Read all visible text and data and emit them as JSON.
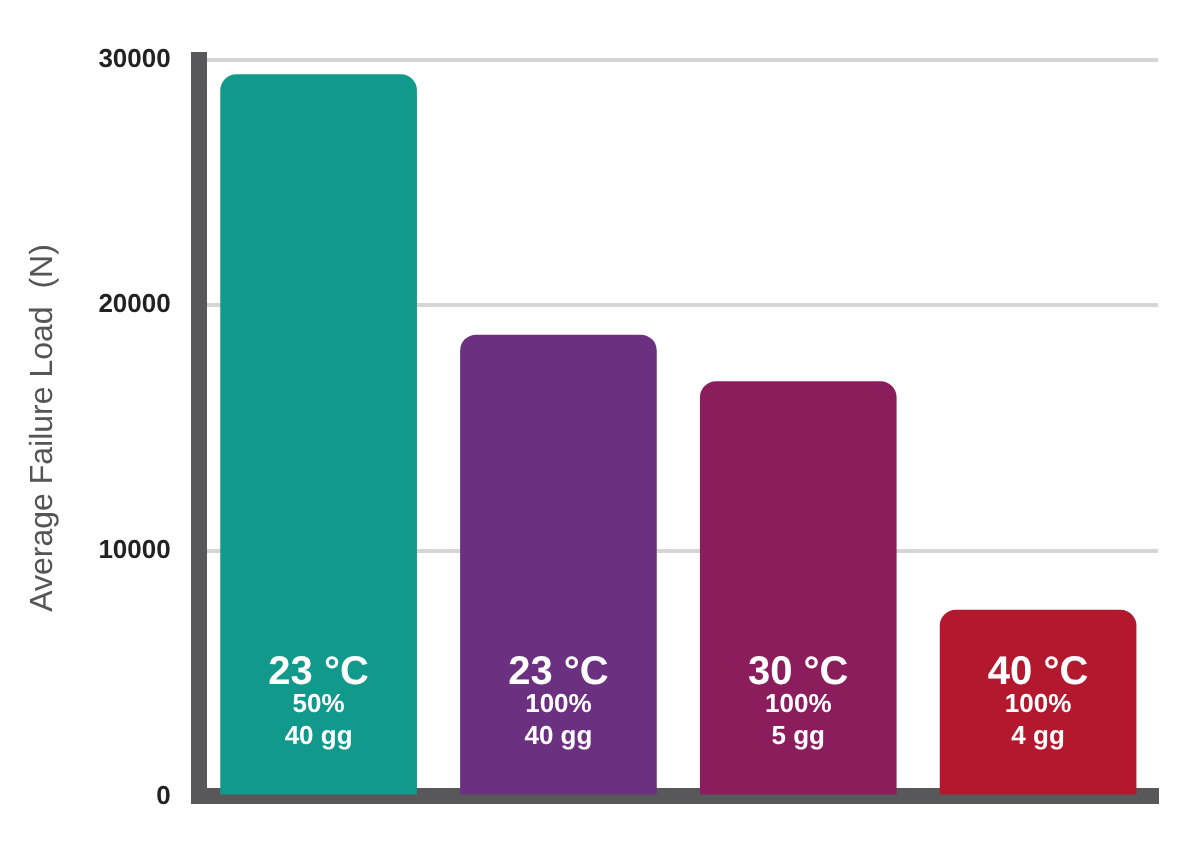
{
  "chart_data": {
    "type": "bar",
    "ylabel": "Average Failure Load  (N)",
    "categories": [
      "23 °C\n50%\n40 gg",
      "23 °C\n100%\n40 gg",
      "30 °C\n100%\n5 gg",
      "40 °C\n100%\n4 gg"
    ],
    "values": [
      29400,
      18800,
      16900,
      7600
    ],
    "colors": [
      "#11998b",
      "#6b3180",
      "#8c1d5c",
      "#b3182e"
    ],
    "ylim": [
      0,
      30000
    ],
    "yticks": [
      0,
      10000,
      20000,
      30000
    ],
    "grid": "y",
    "legend": false
  }
}
